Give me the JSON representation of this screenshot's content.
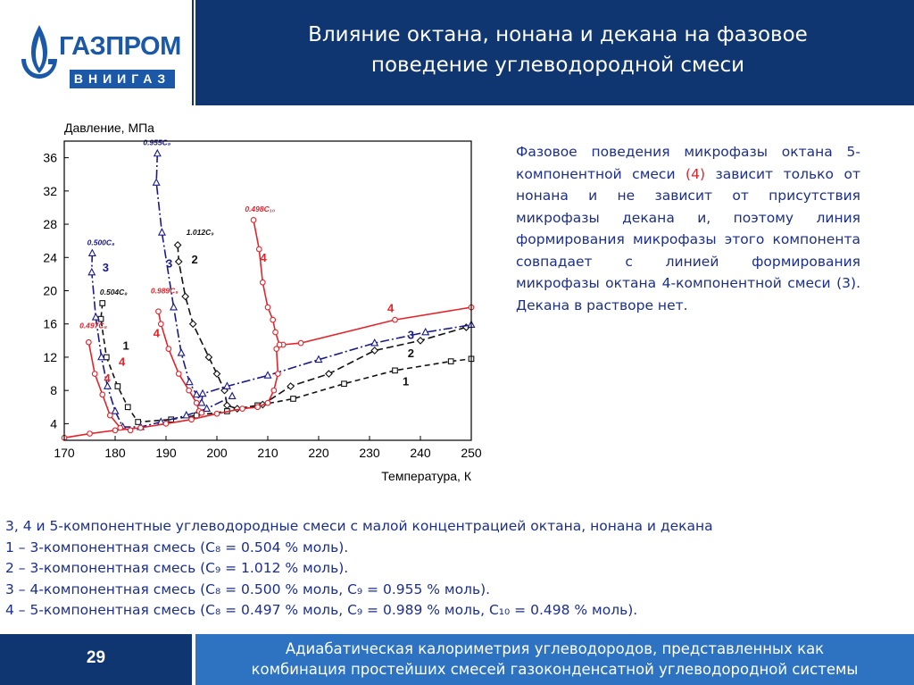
{
  "header": {
    "logo_text": "ГАЗПРОМ",
    "logo_subtext": "ВНИИГАЗ",
    "title_line1": "Влияние октана, нонана и декана на фазовое",
    "title_line2": "поведение углеводородной смеси"
  },
  "colors": {
    "header_bg": "#0f3670",
    "footer_accent": "#2d73c2",
    "logo_blue": "#1b58a8",
    "text_blue": "#1c2f8a",
    "curve_red": "#e3242b",
    "curve_navy": "#1a1a8c",
    "curve_black": "#111111"
  },
  "side_text": {
    "part1": "Фазовое поведения микрофазы октана 5-компонентной смеси ",
    "highlight": "(4)",
    "part2": " зависит только от нонана и не зависит от присутствия микрофазы декана и, поэтому линия формирования микрофазы этого компонента совпадает с линией формирования микрофазы октана 4-компонентной смеси (3). Декана в растворе нет."
  },
  "bottom_text": {
    "line0": "3, 4 и 5-компонентные углеводородные смеси с малой концентрацией октана, нонана и декана",
    "line1": "1 – 3-компонентная смесь (C₈ = 0.504 % моль).",
    "line2": "2 – 3-компонентная смесь (C₉ = 1.012 % моль).",
    "line3": "3 – 4-компонентная смесь (C₈ = 0.500 % моль, C₉ = 0.955 % моль).",
    "line4": "4 – 5-компонентная смесь (C₈ = 0.497 % моль, C₉ = 0.989 % моль, C₁₀ = 0.498 % моль)."
  },
  "footer": {
    "page_number": "29",
    "line1": "Адиабатическая калориметрия углеводородов, представленных как",
    "line2": "комбинация простейших смесей газоконденсатной углеводородной системы"
  },
  "chart_data": {
    "type": "line",
    "ylabel": "Давление, МПа",
    "xlabel": "Температура, К",
    "xlim": [
      170,
      250
    ],
    "ylim": [
      2,
      38
    ],
    "xticks": [
      170,
      180,
      190,
      200,
      210,
      220,
      230,
      240,
      250
    ],
    "yticks": [
      4,
      8,
      12,
      16,
      20,
      24,
      28,
      32,
      36
    ],
    "grid": false,
    "series": [
      {
        "name": "1",
        "color": "#111111",
        "dash": "6,4",
        "marker": "square",
        "segments": [
          [
            [
              177.5,
              18.5
            ],
            [
              177.2,
              16.6
            ],
            [
              178.3,
              12
            ],
            [
              180.5,
              8.5
            ],
            [
              182.5,
              6
            ],
            [
              184.5,
              4.2
            ],
            [
              191,
              4.5
            ],
            [
              196,
              5
            ],
            [
              202,
              5.5
            ],
            [
              208,
              6.2
            ],
            [
              215,
              7
            ],
            [
              225,
              8.8
            ],
            [
              235,
              10.4
            ],
            [
              246,
              11.5
            ],
            [
              250,
              11.8
            ]
          ]
        ],
        "labels": [
          {
            "text": "1",
            "x": 181.5,
            "y": 12.9
          },
          {
            "text": "1",
            "x": 236.5,
            "y": 8.6
          },
          {
            "text": "0.504C₈",
            "x": 177,
            "y": 19.5
          }
        ]
      },
      {
        "name": "2",
        "color": "#111111",
        "dash": "8,4",
        "marker": "diamond",
        "segments": [
          [
            [
              192.3,
              25.5
            ],
            [
              192.5,
              23.5
            ],
            [
              193.8,
              19.3
            ],
            [
              195.3,
              16
            ],
            [
              198.4,
              12
            ],
            [
              200,
              10
            ],
            [
              201.5,
              8
            ],
            [
              202,
              6.2
            ],
            [
              204,
              5.8
            ],
            [
              209,
              6.3
            ],
            [
              214.5,
              8.5
            ],
            [
              222,
              10
            ],
            [
              231,
              12.8
            ],
            [
              240,
              14
            ],
            [
              249,
              15.6
            ]
          ]
        ],
        "labels": [
          {
            "text": "2",
            "x": 195,
            "y": 23.3
          },
          {
            "text": "2",
            "x": 237.5,
            "y": 12
          },
          {
            "text": "1.012C₉",
            "x": 194,
            "y": 26.7
          }
        ]
      },
      {
        "name": "3",
        "color": "#1a1a8c",
        "dash": "10,3,2,3",
        "marker": "triangle",
        "segments": [
          [
            [
              175.5,
              24.5
            ],
            [
              175.4,
              22.2
            ],
            [
              176.2,
              16.8
            ],
            [
              177.3,
              12
            ],
            [
              178.5,
              8.5
            ],
            [
              180,
              5.5
            ],
            [
              181.5,
              3.6
            ],
            [
              185,
              3.6
            ],
            [
              189,
              4.2
            ],
            [
              194,
              5
            ],
            [
              198,
              5.8
            ],
            [
              203,
              7.3
            ]
          ],
          [
            [
              188.3,
              36.5
            ],
            [
              188.1,
              33
            ],
            [
              189.2,
              27
            ],
            [
              191.5,
              18
            ],
            [
              193,
              12.5
            ],
            [
              194.6,
              9
            ],
            [
              196,
              7.5
            ],
            [
              197,
              6.5
            ],
            [
              197.2,
              7.6
            ],
            [
              202,
              8.5
            ],
            [
              210,
              9.8
            ],
            [
              220,
              11.7
            ],
            [
              231,
              13.7
            ],
            [
              241,
              15
            ],
            [
              250,
              15.9
            ]
          ]
        ],
        "labels": [
          {
            "text": "3",
            "x": 177.5,
            "y": 22.3
          },
          {
            "text": "3",
            "x": 190,
            "y": 22.8
          },
          {
            "text": "3",
            "x": 237.5,
            "y": 14.2
          },
          {
            "text": "0.500C₈",
            "x": 174.5,
            "y": 25.5
          },
          {
            "text": "0.955C₉",
            "x": 185.5,
            "y": 37.5
          }
        ]
      },
      {
        "name": "4",
        "color": "#e3242b",
        "dash": "",
        "marker": "circle",
        "segments": [
          [
            [
              170,
              2.3
            ],
            [
              175,
              2.8
            ],
            [
              180,
              3.2
            ],
            [
              185,
              3.5
            ],
            [
              190,
              4
            ],
            [
              195,
              4.5
            ],
            [
              200,
              5.2
            ],
            [
              205,
              5.8
            ],
            [
              208,
              6
            ],
            [
              210,
              6.5
            ],
            [
              211.2,
              8
            ],
            [
              212,
              10
            ],
            [
              211.7,
              13
            ],
            [
              213,
              13.5
            ],
            [
              216.5,
              13.7
            ],
            [
              235,
              16.5
            ],
            [
              250,
              18
            ]
          ],
          [
            [
              207.2,
              28.5
            ],
            [
              208.3,
              25
            ],
            [
              209,
              21
            ],
            [
              210,
              18
            ],
            [
              211,
              16.5
            ],
            [
              211.5,
              15
            ],
            [
              212.3,
              13.5
            ]
          ],
          [
            [
              174.8,
              13.8
            ],
            [
              176,
              10
            ],
            [
              177.5,
              7.5
            ],
            [
              179,
              5
            ],
            [
              181,
              3.5
            ],
            [
              183,
              3.2
            ]
          ],
          [
            [
              188.5,
              17.5
            ],
            [
              189,
              16
            ],
            [
              190.5,
              13
            ],
            [
              192.5,
              10
            ],
            [
              194.5,
              8
            ],
            [
              196,
              6.5
            ],
            [
              196.5,
              5.5
            ],
            [
              197,
              5.3
            ]
          ]
        ],
        "labels": [
          {
            "text": "4",
            "x": 180.7,
            "y": 11
          },
          {
            "text": "4",
            "x": 177.8,
            "y": 9
          },
          {
            "text": "4",
            "x": 187.5,
            "y": 14.4
          },
          {
            "text": "4",
            "x": 233.5,
            "y": 17.4
          },
          {
            "text": "4",
            "x": 208.5,
            "y": 23.5
          },
          {
            "text": "0.497C₈",
            "x": 173,
            "y": 15.5
          },
          {
            "text": "0.989C₉",
            "x": 187,
            "y": 19.7
          },
          {
            "text": "0.498C₁₀",
            "x": 205.5,
            "y": 29.5
          }
        ]
      }
    ]
  }
}
